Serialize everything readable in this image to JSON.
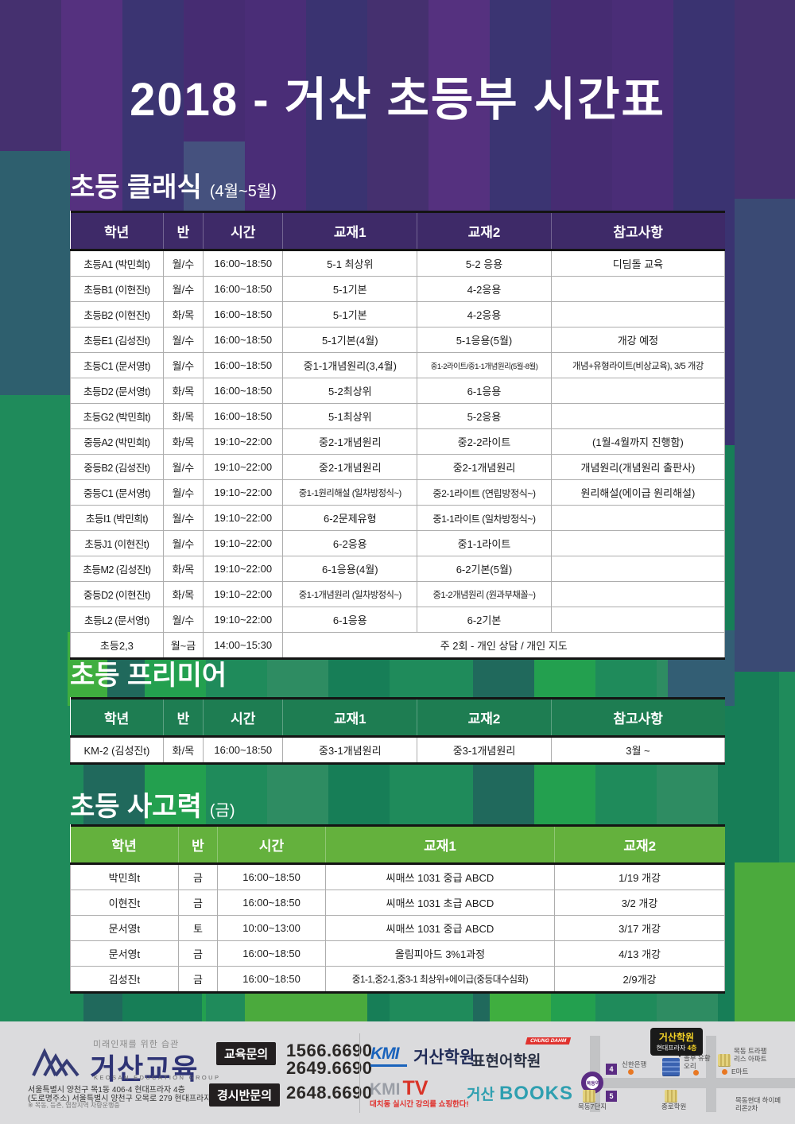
{
  "page_title": "2018 - 거산 초등부 시간표",
  "accent_colors": {
    "purple_header": "#3E2A68",
    "green_header": "#1E7D52",
    "light_green_header": "#64B13D"
  },
  "sections": [
    {
      "title": "초등 클래식",
      "subtitle": "(4월~5월)",
      "columns": [
        "학년",
        "반",
        "시간",
        "교재1",
        "교재2",
        "참고사항"
      ],
      "rows": [
        [
          "초등A1 (박민희t)",
          "월/수",
          "16:00~18:50",
          "5-1 최상위",
          "5-2 응용",
          "디딤돌 교육"
        ],
        [
          "초등B1 (이현진t)",
          "월/수",
          "16:00~18:50",
          "5-1기본",
          "4-2응용",
          ""
        ],
        [
          "초등B2 (이현진t)",
          "화/목",
          "16:00~18:50",
          "5-1기본",
          "4-2응용",
          ""
        ],
        [
          "초등E1 (김성진t)",
          "월/수",
          "16:00~18:50",
          "5-1기본(4월)",
          "5-1응용(5월)",
          "개강 예정"
        ],
        [
          "초등C1 (문서영t)",
          "월/수",
          "16:00~18:50",
          "중1-1개념원리(3,4월)",
          "중1-2라이트/중1-1개념원리(5월-8월)",
          "개념+유형라이트(비상교육), 3/5 개강"
        ],
        [
          "초등D2 (문서영t)",
          "화/목",
          "16:00~18:50",
          "5-2최상위",
          "6-1응용",
          ""
        ],
        [
          "초등G2 (박민희t)",
          "화/목",
          "16:00~18:50",
          "5-1최상위",
          "5-2응용",
          ""
        ],
        [
          "중등A2 (박민희t)",
          "화/목",
          "19:10~22:00",
          "중2-1개념원리",
          "중2-2라이트",
          "(1월-4월까지 진행함)"
        ],
        [
          "중등B2 (김성진t)",
          "월/수",
          "19:10~22:00",
          "중2-1개념원리",
          "중2-1개념원리",
          "개념원리(개념원리 출판사)"
        ],
        [
          "중등C1 (문서영t)",
          "월/수",
          "19:10~22:00",
          "중1-1원리해설 (일차방정식~)",
          "중2-1라이트 (연립방정식~)",
          "원리해설(에이급 원리해설)"
        ],
        [
          "초등I1 (박민희t)",
          "월/수",
          "19:10~22:00",
          "6-2문제유형",
          "중1-1라이트 (일차방정식~)",
          ""
        ],
        [
          "초등J1 (이현진t)",
          "월/수",
          "19:10~22:00",
          "6-2응용",
          "중1-1라이트",
          ""
        ],
        [
          "초등M2 (김성진t)",
          "화/목",
          "19:10~22:00",
          "6-1응용(4월)",
          "6-2기본(5월)",
          ""
        ],
        [
          "중등D2 (이현진t)",
          "화/목",
          "19:10~22:00",
          "중1-1개념원리 (일차방정식~)",
          "중1-2개념원리 (원과부채꼴~)",
          ""
        ],
        [
          "초등L2 (문서영t)",
          "월/수",
          "19:10~22:00",
          "6-1응용",
          "6-2기본",
          ""
        ],
        [
          "초등2,3",
          "월~금",
          "14:00~15:30",
          "주 2회 - 개인 상담 / 개인 지도"
        ]
      ]
    },
    {
      "title": "초등 프리미어",
      "subtitle": "",
      "columns": [
        "학년",
        "반",
        "시간",
        "교재1",
        "교재2",
        "참고사항"
      ],
      "rows": [
        [
          "KM-2 (김성진t)",
          "화/목",
          "16:00~18:50",
          "중3-1개념원리",
          "중3-1개념원리",
          "3월 ~"
        ]
      ]
    },
    {
      "title": "초등 사고력",
      "subtitle": "(금)",
      "columns": [
        "학년",
        "반",
        "시간",
        "교재1",
        "교재2"
      ],
      "rows": [
        [
          "박민희t",
          "금",
          "16:00~18:50",
          "씨매쓰 1031 중급 ABCD",
          "1/19 개강"
        ],
        [
          "이현진t",
          "금",
          "16:00~18:50",
          "씨매쓰 1031 초급 ABCD",
          "3/2 개강"
        ],
        [
          "문서영t",
          "토",
          "10:00~13:00",
          "씨매쓰 1031 중급 ABCD",
          "3/17 개강"
        ],
        [
          "문서영t",
          "금",
          "16:00~18:50",
          "올림피아드 3%1과정",
          "4/13 개강"
        ],
        [
          "김성진t",
          "금",
          "16:00~18:50",
          "중1-1,중2-1,중3-1 최상위+에이급(중등대수심화)",
          "2/9개강"
        ]
      ]
    }
  ],
  "footer": {
    "logo": {
      "tagline": "미래인재를 위한 습관",
      "name": "거산교육",
      "eng": "KEOSAN EDUCATION GROUP",
      "address1": "서울특별시 양천구 목1동 406-4 현대프라자 4층",
      "address2": "(도로명주소) 서울특별시 양천구 오목로 279 현대프라자 4층",
      "note": "※ 목동, 등촌, 염창지역 차량운행중"
    },
    "contacts": {
      "edu_label": "교육문의",
      "edu_phone1": "1566.6690",
      "edu_phone2": "2649.6690",
      "contest_label": "경시반문의",
      "contest_phone": "2648.6690"
    },
    "brands": {
      "kmi": "KMI",
      "kmi_academy": "거산학원",
      "pyohyun": "표현어학원",
      "chungdahm": "CHUNG DAHM",
      "kmitv_kmi": "KMI",
      "kmitv_tv": "TV",
      "kmitv_sub": "대치동 실시간 강의를 쇼핑한다!",
      "books_kr": "거산",
      "books_en": "BOOKS"
    },
    "map": {
      "station": "목동역",
      "exit4": "4",
      "exit5": "5",
      "bubble_title": "거산학원",
      "bubble_sub": "현대프라자",
      "bubble_floor": "4층",
      "shinhan": "신한은행",
      "nolbu": "놀부 유황오리",
      "trapalace": "목동 트라팰리스 아파트",
      "emart": "E마트",
      "mokdong7": "목동7단지",
      "jongro": "종로학원",
      "hyperion": "목동현대 하이페리온2차"
    }
  }
}
